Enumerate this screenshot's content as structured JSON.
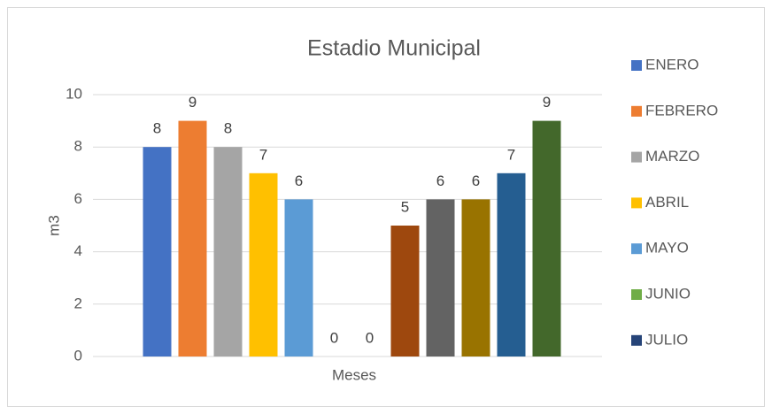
{
  "chart_data": {
    "type": "bar",
    "title": "Estadio Municipal",
    "x_label": "Meses",
    "y_label": "m3",
    "ylim": [
      0,
      10
    ],
    "yticks": [
      0,
      2,
      4,
      6,
      8,
      10
    ],
    "grid": true,
    "legend": "right",
    "series": [
      {
        "name": "ENERO",
        "color": "#4472c4",
        "values": [
          8
        ]
      },
      {
        "name": "FEBRERO",
        "color": "#ed7d31",
        "values": [
          9
        ]
      },
      {
        "name": "MARZO",
        "color": "#a5a5a5",
        "values": [
          8
        ]
      },
      {
        "name": "ABRIL",
        "color": "#ffc000",
        "values": [
          7
        ]
      },
      {
        "name": "MAYO",
        "color": "#5b9bd5",
        "values": [
          6
        ]
      },
      {
        "name": "JUNIO",
        "color": "#70ad47",
        "values": [
          0
        ]
      },
      {
        "name": "JULIO",
        "color": "#264478",
        "values": [
          0
        ]
      },
      {
        "color": "#9e480e",
        "values": [
          5
        ]
      },
      {
        "color": "#636363",
        "values": [
          6
        ]
      },
      {
        "color": "#997300",
        "values": [
          6
        ]
      },
      {
        "color": "#255e91",
        "values": [
          7
        ]
      },
      {
        "color": "#43682b",
        "values": [
          9
        ]
      }
    ]
  }
}
